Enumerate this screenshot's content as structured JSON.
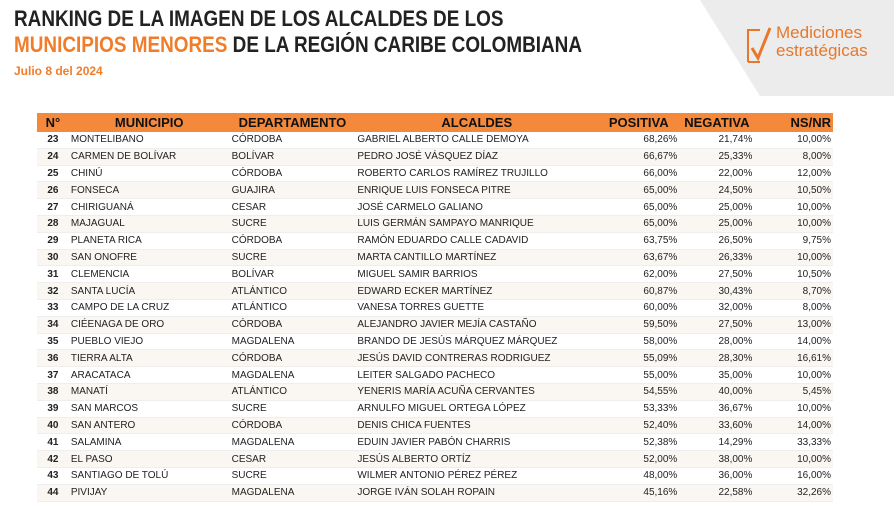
{
  "header": {
    "title_line1": "RANKING DE LA IMAGEN DE LOS ALCALDES DE LOS",
    "title_line2_highlight": "MUNICIPIOS MENORES",
    "title_line2_rest": "DE LA REGIÓN CARIBE COLOMBIANA",
    "date": "Julio 8 del 2024"
  },
  "logo": {
    "line1": "Mediciones",
    "line2": "estratégicas"
  },
  "table": {
    "columns": [
      "N°",
      "MUNICIPIO",
      "DEPARTAMENTO",
      "ALCALDES",
      "POSITIVA",
      "NEGATIVA",
      "NS/NR"
    ],
    "rows": [
      [
        23,
        "MONTELIBANO",
        "CÓRDOBA",
        "GABRIEL ALBERTO CALLE DEMOYA",
        "68,26%",
        "21,74%",
        "10,00%"
      ],
      [
        24,
        "CARMEN DE BOLÍVAR",
        "BOLÍVAR",
        "PEDRO JOSÉ VÁSQUEZ DÍAZ",
        "66,67%",
        "25,33%",
        "8,00%"
      ],
      [
        25,
        "CHINÚ",
        "CÓRDOBA",
        "ROBERTO CARLOS RAMÍREZ TRUJILLO",
        "66,00%",
        "22,00%",
        "12,00%"
      ],
      [
        26,
        "FONSECA",
        "GUAJIRA",
        "ENRIQUE LUIS FONSECA PITRE",
        "65,00%",
        "24,50%",
        "10,50%"
      ],
      [
        27,
        "CHIRIGUANÁ",
        "CESAR",
        "JOSÉ CARMELO GALIANO",
        "65,00%",
        "25,00%",
        "10,00%"
      ],
      [
        28,
        "MAJAGUAL",
        "SUCRE",
        "LUIS GERMÁN SAMPAYO MANRIQUE",
        "65,00%",
        "25,00%",
        "10,00%"
      ],
      [
        29,
        "PLANETA RICA",
        "CÓRDOBA",
        "RAMÓN EDUARDO CALLE CADAVID",
        "63,75%",
        "26,50%",
        "9,75%"
      ],
      [
        30,
        "SAN ONOFRE",
        "SUCRE",
        "MARTA CANTILLO MARTÍNEZ",
        "63,67%",
        "26,33%",
        "10,00%"
      ],
      [
        31,
        "CLEMENCIA",
        "BOLÍVAR",
        "MIGUEL SAMIR BARRIOS",
        "62,00%",
        "27,50%",
        "10,50%"
      ],
      [
        32,
        "SANTA LUCÍA",
        "ATLÁNTICO",
        "EDWARD ECKER MARTÍNEZ",
        "60,87%",
        "30,43%",
        "8,70%"
      ],
      [
        33,
        "CAMPO DE LA CRUZ",
        "ATLÁNTICO",
        "VANESA TORRES GUETTE",
        "60,00%",
        "32,00%",
        "8,00%"
      ],
      [
        34,
        "CIÉENAGA DE ORO",
        "CÓRDOBA",
        "ALEJANDRO JAVIER MEJÍA CASTAÑO",
        "59,50%",
        "27,50%",
        "13,00%"
      ],
      [
        35,
        "PUEBLO VIEJO",
        "MAGDALENA",
        "BRANDO DE JESÚS MÁRQUEZ MÁRQUEZ",
        "58,00%",
        "28,00%",
        "14,00%"
      ],
      [
        36,
        "TIERRA ALTA",
        "CÓRDOBA",
        "JESÚS DAVID CONTRERAS RODRIGUEZ",
        "55,09%",
        "28,30%",
        "16,61%"
      ],
      [
        37,
        "ARACATACA",
        "MAGDALENA",
        "LEITER SALGADO PACHECO",
        "55,00%",
        "35,00%",
        "10,00%"
      ],
      [
        38,
        "MANATÍ",
        "ATLÁNTICO",
        "YENERIS MARÍA ACUÑA CERVANTES",
        "54,55%",
        "40,00%",
        "5,45%"
      ],
      [
        39,
        "SAN MARCOS",
        "SUCRE",
        "ARNULFO MIGUEL ORTEGA LÓPEZ",
        "53,33%",
        "36,67%",
        "10,00%"
      ],
      [
        40,
        "SAN ANTERO",
        "CÓRDOBA",
        "DENIS CHICA FUENTES",
        "52,40%",
        "33,60%",
        "14,00%"
      ],
      [
        41,
        "SALAMINA",
        "MAGDALENA",
        "EDUIN JAVIER PABÓN CHARRIS",
        "52,38%",
        "14,29%",
        "33,33%"
      ],
      [
        42,
        "EL PASO",
        "CESAR",
        "JESÚS ALBERTO ORTÍZ",
        "52,00%",
        "38,00%",
        "10,00%"
      ],
      [
        43,
        "SANTIAGO DE TOLÚ",
        "SUCRE",
        "WILMER ANTONIO PÉREZ PÉREZ",
        "48,00%",
        "36,00%",
        "16,00%"
      ],
      [
        44,
        "PIVIJAY",
        "MAGDALENA",
        "JORGE IVÁN SOLAH ROPAIN",
        "45,16%",
        "22,58%",
        "32,26%"
      ]
    ]
  }
}
